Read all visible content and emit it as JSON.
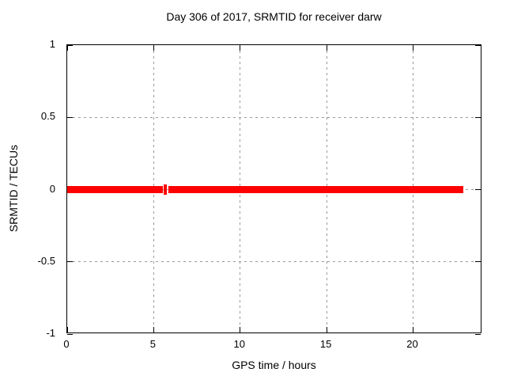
{
  "chart_data": {
    "type": "line",
    "title": "Day 306 of 2017, SRMTID for receiver darw",
    "xlabel": "GPS time / hours",
    "ylabel": "SRMTID / TECUs",
    "xlim": [
      0,
      24
    ],
    "ylim": [
      -1,
      1
    ],
    "xticks": [
      0,
      5,
      10,
      15,
      20
    ],
    "yticks": [
      1,
      0.5,
      0,
      -0.5,
      -1
    ],
    "grid": true,
    "legend": "none",
    "colors": {
      "series": "#ff0000",
      "axis": "#000000",
      "grid": "#999999",
      "text": "#000000",
      "background": "#ffffff"
    },
    "series": [
      {
        "name": "SRMTID",
        "color": "#ff0000",
        "segments": [
          {
            "x_start": 0.0,
            "x_end": 5.51,
            "y": 0
          },
          {
            "x_start": 5.58,
            "x_end": 5.76,
            "y": 0,
            "isolated": true
          },
          {
            "x_start": 5.85,
            "x_end": 22.9,
            "y": 0
          }
        ]
      }
    ]
  }
}
